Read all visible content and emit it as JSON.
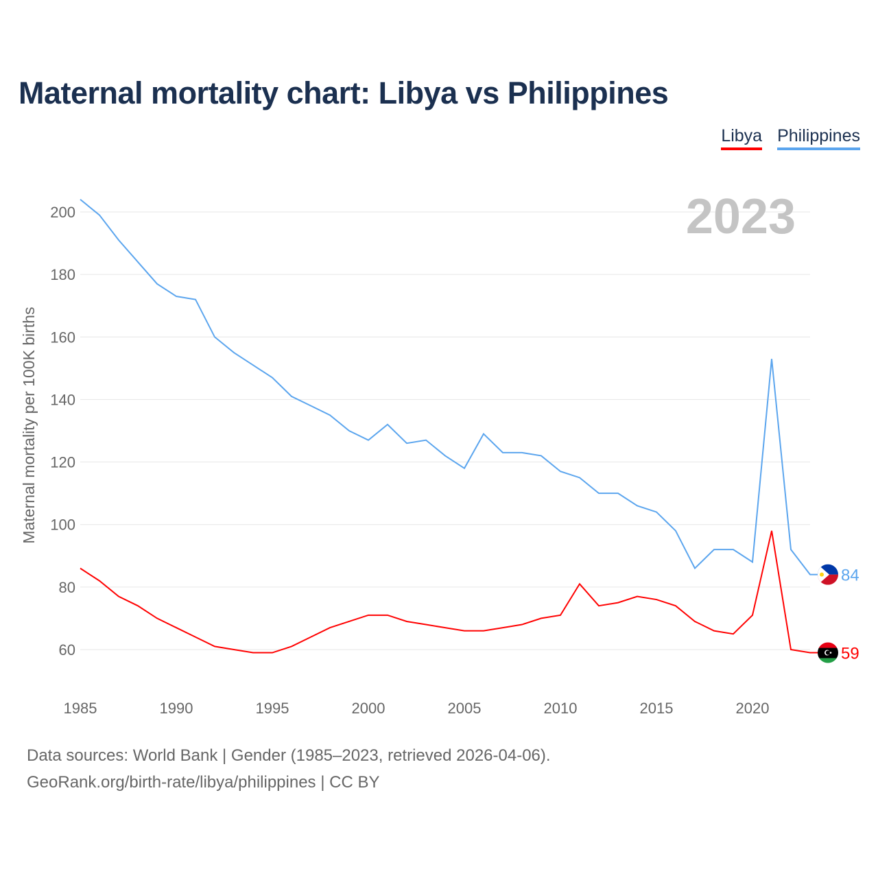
{
  "chart_data": {
    "type": "line",
    "title": "Maternal mortality chart: Libya vs Philippines",
    "ylabel": "Maternal mortality per 100K births",
    "xlabel": "",
    "year_label": "2023",
    "ylim": [
      50,
      210
    ],
    "xlim": [
      1985,
      2023
    ],
    "yticks": [
      60,
      80,
      100,
      120,
      140,
      160,
      180,
      200
    ],
    "xticks": [
      1985,
      1990,
      1995,
      2000,
      2005,
      2010,
      2015,
      2020
    ],
    "grid": true,
    "legend_placement": "top-right",
    "x": [
      1985,
      1986,
      1987,
      1988,
      1989,
      1990,
      1991,
      1992,
      1993,
      1994,
      1995,
      1996,
      1997,
      1998,
      1999,
      2000,
      2001,
      2002,
      2003,
      2004,
      2005,
      2006,
      2007,
      2008,
      2009,
      2010,
      2011,
      2012,
      2013,
      2014,
      2015,
      2016,
      2017,
      2018,
      2019,
      2020,
      2021,
      2022,
      2023
    ],
    "series": [
      {
        "name": "Libya",
        "color": "#ff0000",
        "end_label": "59",
        "values": [
          86,
          82,
          77,
          74,
          70,
          67,
          64,
          61,
          60,
          59,
          59,
          61,
          64,
          67,
          69,
          71,
          71,
          69,
          68,
          67,
          66,
          66,
          67,
          68,
          70,
          71,
          81,
          74,
          75,
          77,
          76,
          74,
          69,
          66,
          65,
          71,
          98,
          60,
          59
        ]
      },
      {
        "name": "Philippines",
        "color": "#5ba5ee",
        "end_label": "84",
        "values": [
          204,
          199,
          191,
          184,
          177,
          173,
          172,
          160,
          155,
          151,
          147,
          141,
          138,
          135,
          130,
          127,
          132,
          126,
          127,
          122,
          118,
          129,
          123,
          123,
          122,
          117,
          115,
          110,
          110,
          106,
          104,
          98,
          86,
          92,
          92,
          88,
          153,
          92,
          84
        ]
      }
    ]
  },
  "footer": {
    "line1": "Data sources: World Bank | Gender (1985–2023, retrieved 2026-04-06).",
    "line2": "GeoRank.org/birth-rate/libya/philippines | CC BY"
  }
}
